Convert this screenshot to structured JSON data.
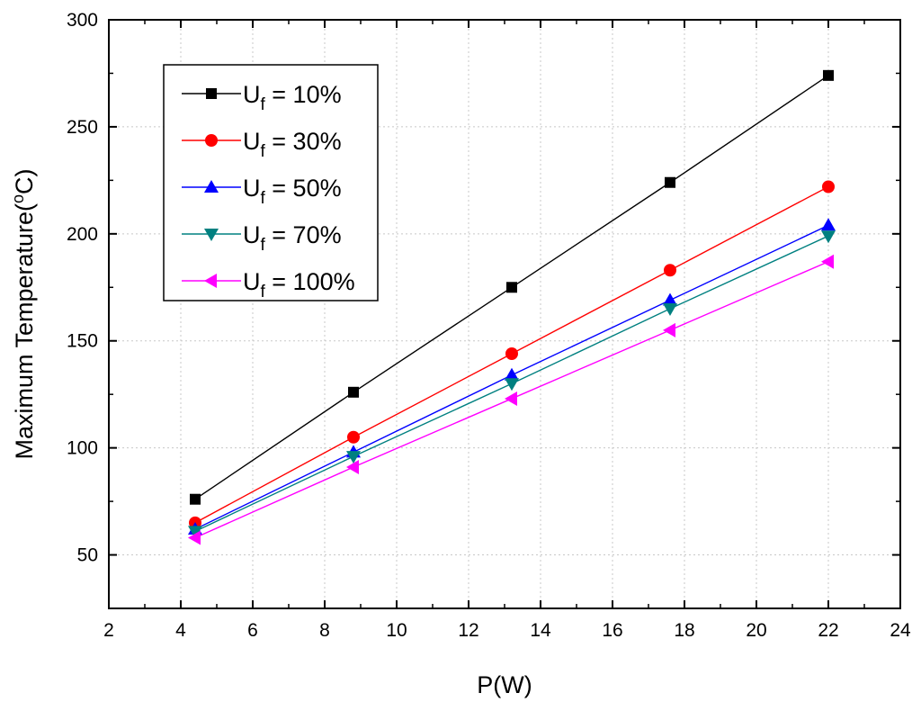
{
  "chart_data": {
    "type": "line",
    "title": "",
    "xlabel": "P(W)",
    "ylabel": "Maximum Temperature(°C)",
    "xlim": [
      2,
      24
    ],
    "ylim": [
      25,
      300
    ],
    "xticks": [
      2,
      4,
      6,
      8,
      10,
      12,
      14,
      16,
      18,
      20,
      22,
      24
    ],
    "yticks": [
      50,
      100,
      150,
      200,
      250,
      300
    ],
    "grid": true,
    "legend_position": "top-left",
    "x": [
      4.4,
      8.8,
      13.2,
      17.6,
      22
    ],
    "series": [
      {
        "name": "U_f = 10%",
        "label_main": "U",
        "label_sub": "f",
        "label_rest": " = 10%",
        "color": "#000000",
        "marker": "square",
        "values": [
          76,
          126,
          175,
          224,
          274
        ]
      },
      {
        "name": "U_f = 30%",
        "label_main": "U",
        "label_sub": "f",
        "label_rest": " = 30%",
        "color": "#ff0000",
        "marker": "circle",
        "values": [
          65,
          105,
          144,
          183,
          222
        ]
      },
      {
        "name": "U_f = 50%",
        "label_main": "U",
        "label_sub": "f",
        "label_rest": " = 50%",
        "color": "#0000ff",
        "marker": "triangle-up",
        "values": [
          62,
          98,
          134,
          169,
          204
        ]
      },
      {
        "name": "U_f = 70%",
        "label_main": "U",
        "label_sub": "f",
        "label_rest": " = 70%",
        "color": "#008080",
        "marker": "triangle-down",
        "values": [
          61,
          96,
          130,
          165,
          199
        ]
      },
      {
        "name": "U_f = 100%",
        "label_main": "U",
        "label_sub": "f",
        "label_rest": " = 100%",
        "color": "#ff00ff",
        "marker": "triangle-left",
        "values": [
          58,
          91,
          123,
          155,
          187
        ]
      }
    ]
  }
}
